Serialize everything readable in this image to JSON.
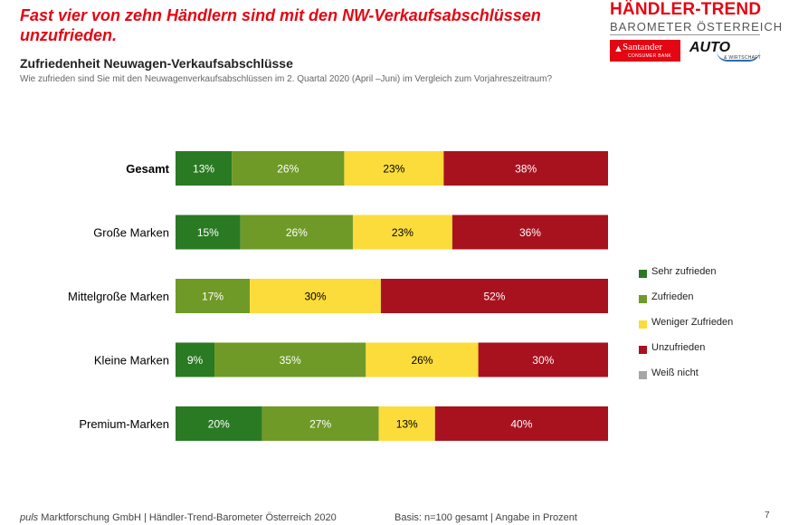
{
  "headline": "Fast vier von zehn Händlern sind mit den NW-Verkaufsabschlüssen unzufrieden.",
  "brand": {
    "title": "HÄNDLER-TREND",
    "subtitle": "BAROMETER ÖSTERREICH",
    "partner1_name": "Santander",
    "partner1_sub": "CONSUMER BANK",
    "partner2_name": "AUTO",
    "partner2_sub": "& WIRTSCHAFT"
  },
  "footer": {
    "company_prefix": "puls",
    "company_rest": " Marktforschung GmbH | Händler-Trend-Barometer Österreich 2020",
    "basis": "Basis: n=100 gesamt | Angabe in Prozent",
    "page": "7"
  },
  "chart_data": {
    "type": "bar",
    "orientation": "horizontal",
    "stacked": true,
    "title": "Zufriedenheit Neuwagen-Verkaufsabschlüsse",
    "subtitle": "Wie zufrieden sind Sie mit den Neuwagenverkaufsabschlüssen im 2. Quartal 2020 (April –Juni) im Vergleich zum Vorjahreszeitraum?",
    "categories": [
      "Gesamt",
      "Große Marken",
      "Mittelgroße Marken",
      "Kleine Marken",
      "Premium-Marken"
    ],
    "bold_categories": [
      "Gesamt"
    ],
    "unit": "%",
    "series": [
      {
        "name": "Sehr zufrieden",
        "color": "#2a7a23",
        "text_color": "#ffffff",
        "values": [
          13,
          15,
          0,
          9,
          20
        ]
      },
      {
        "name": "Zufrieden",
        "color": "#6f9a27",
        "text_color": "#ffffff",
        "values": [
          26,
          26,
          17,
          35,
          27
        ]
      },
      {
        "name": "Weniger Zufrieden",
        "color": "#fbdc3a",
        "text_color": "#000000",
        "values": [
          23,
          23,
          30,
          26,
          13
        ]
      },
      {
        "name": "Unzufrieden",
        "color": "#a8121e",
        "text_color": "#ffffff",
        "values": [
          38,
          36,
          52,
          30,
          40
        ]
      },
      {
        "name": "Weiß nicht",
        "color": "#a6a6a6",
        "text_color": "#000000",
        "values": [
          0,
          0,
          0,
          0,
          0
        ]
      }
    ],
    "legend_position": "right",
    "grid": false
  }
}
